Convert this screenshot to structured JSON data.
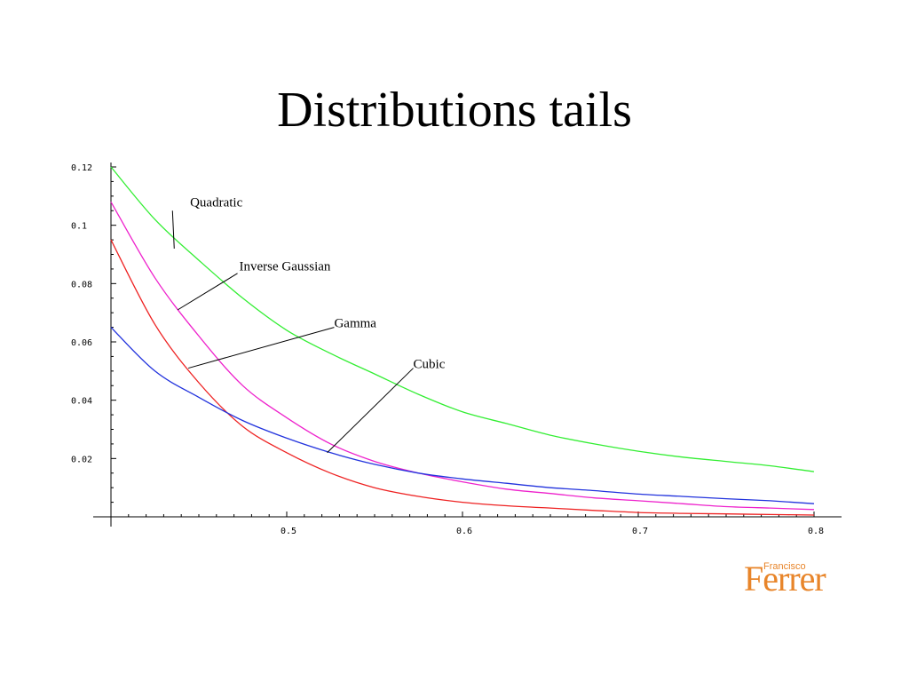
{
  "slide": {
    "title": "Distributions tails"
  },
  "logo": {
    "small": "Francisco",
    "main": "Ferrer",
    "color": "#e8852a"
  },
  "chart_data": {
    "type": "line",
    "title": "Distributions tails",
    "xlabel": "",
    "ylabel": "",
    "xlim": [
      0.4,
      0.8
    ],
    "ylim": [
      0.0,
      0.12
    ],
    "xticks": [
      0.5,
      0.6,
      0.7,
      0.8
    ],
    "xtick_labels": [
      "0.5",
      "0.6",
      "0.7",
      "0.8"
    ],
    "yticks": [
      0.02,
      0.04,
      0.06,
      0.08,
      0.1,
      0.12
    ],
    "ytick_labels": [
      "0.02",
      "0.04",
      "0.06",
      "0.08",
      "0.1",
      "0.12"
    ],
    "grid": false,
    "legend": "callouts",
    "series": [
      {
        "name": "Quadratic",
        "color": "#33ee33",
        "x": [
          0.4,
          0.425,
          0.45,
          0.475,
          0.5,
          0.525,
          0.55,
          0.575,
          0.6,
          0.625,
          0.65,
          0.675,
          0.7,
          0.725,
          0.75,
          0.775,
          0.8
        ],
        "y": [
          0.12,
          0.102,
          0.088,
          0.075,
          0.064,
          0.056,
          0.049,
          0.042,
          0.036,
          0.032,
          0.028,
          0.025,
          0.0225,
          0.0205,
          0.019,
          0.0175,
          0.0155
        ]
      },
      {
        "name": "Inverse Gaussian",
        "color": "#ee22cc",
        "x": [
          0.4,
          0.425,
          0.45,
          0.475,
          0.5,
          0.525,
          0.55,
          0.575,
          0.6,
          0.625,
          0.65,
          0.675,
          0.7,
          0.725,
          0.75,
          0.775,
          0.8
        ],
        "y": [
          0.108,
          0.082,
          0.062,
          0.045,
          0.034,
          0.025,
          0.019,
          0.015,
          0.012,
          0.0095,
          0.008,
          0.0065,
          0.0055,
          0.0045,
          0.0035,
          0.003,
          0.0025
        ]
      },
      {
        "name": "Gamma",
        "color": "#ee2222",
        "x": [
          0.4,
          0.425,
          0.45,
          0.475,
          0.5,
          0.525,
          0.55,
          0.575,
          0.6,
          0.625,
          0.65,
          0.675,
          0.7,
          0.725,
          0.75,
          0.775,
          0.8
        ],
        "y": [
          0.095,
          0.066,
          0.046,
          0.031,
          0.022,
          0.015,
          0.01,
          0.007,
          0.005,
          0.0038,
          0.003,
          0.0022,
          0.0015,
          0.0012,
          0.001,
          0.0008,
          0.0006
        ]
      },
      {
        "name": "Cubic",
        "color": "#2233dd",
        "x": [
          0.4,
          0.425,
          0.45,
          0.475,
          0.5,
          0.525,
          0.55,
          0.575,
          0.6,
          0.625,
          0.65,
          0.675,
          0.7,
          0.725,
          0.75,
          0.775,
          0.8
        ],
        "y": [
          0.065,
          0.05,
          0.041,
          0.033,
          0.027,
          0.022,
          0.018,
          0.015,
          0.013,
          0.0115,
          0.01,
          0.009,
          0.0078,
          0.007,
          0.0062,
          0.0055,
          0.0045
        ]
      }
    ],
    "callouts": [
      {
        "label": "Quadratic",
        "series": "Quadratic",
        "text_x": 0.445,
        "text_y": 0.1065,
        "line_from": [
          0.435,
          0.105
        ],
        "line_to": [
          0.436,
          0.092
        ]
      },
      {
        "label": "Inverse Gaussian",
        "series": "Inverse Gaussian",
        "text_x": 0.473,
        "text_y": 0.0845,
        "line_from": [
          0.472,
          0.0835
        ],
        "line_to": [
          0.438,
          0.071
        ]
      },
      {
        "label": "Gamma",
        "series": "Gamma",
        "text_x": 0.527,
        "text_y": 0.065,
        "line_from": [
          0.527,
          0.065
        ],
        "line_to": [
          0.444,
          0.051
        ]
      },
      {
        "label": "Cubic",
        "series": "Cubic",
        "text_x": 0.572,
        "text_y": 0.051,
        "line_from": [
          0.572,
          0.051
        ],
        "line_to": [
          0.523,
          0.022
        ]
      }
    ]
  }
}
